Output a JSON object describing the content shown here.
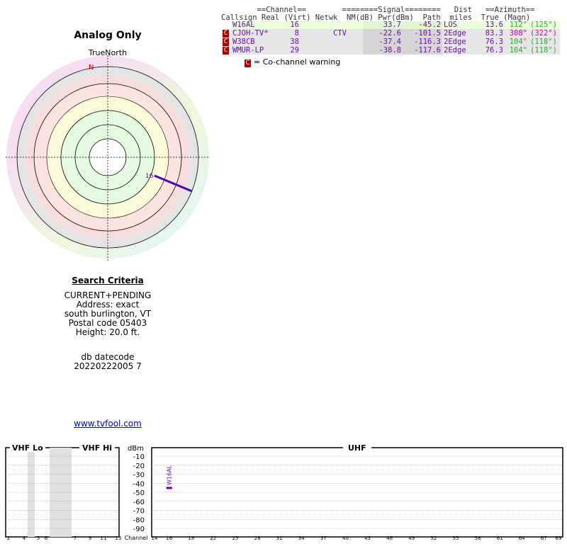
{
  "title": "Analog Only",
  "true_north_label": "TrueNorth",
  "compass_n": "N",
  "radar_station_label": "16",
  "criteria": {
    "heading": "Search Criteria",
    "lines": [
      "CURRENT+PENDING",
      "Address: exact",
      "south burlington, VT",
      "Postal code 05403",
      "Height: 20.0 ft."
    ],
    "db_label": "db datecode",
    "db_value": "20220222005 7"
  },
  "site_link": "www.tvfool.com",
  "table": {
    "header1": "        ==Channel==        ========Signal========   Dist   ==Azimuth==",
    "header2": "Callsign Real (Virt) Netwk  NM(dB) Pwr(dBm)  Path  miles  True (Magn)",
    "rows": [
      {
        "warn": "",
        "callsign": "W16AL",
        "real": "16",
        "virt": "",
        "netwk": "",
        "nm": "33.7",
        "pwr": "-45.2",
        "path": "LOS",
        "dist": "13.6",
        "true_az": "112°",
        "magn": "(125°)",
        "bg": "#eaffd9",
        "az_color": "#3a3"
      },
      {
        "warn": "C",
        "callsign": "CJOH-TV*",
        "real": "8",
        "virt": "",
        "netwk": "CTV",
        "nm": "-22.6",
        "pwr": "-101.5",
        "path": "2Edge",
        "dist": "83.3",
        "true_az": "308°",
        "magn": "(322°)",
        "bg": "#e6e6e6",
        "az_color": "#c0a"
      },
      {
        "warn": "C",
        "callsign": "W38CB",
        "real": "38",
        "virt": "",
        "netwk": "",
        "nm": "-37.4",
        "pwr": "-116.3",
        "path": "2Edge",
        "dist": "76.3",
        "true_az": "104°",
        "magn": "(118°)",
        "bg": "#e6e6e6",
        "az_color": "#3a3"
      },
      {
        "warn": "C",
        "callsign": "WMUR-LP",
        "real": "29",
        "virt": "",
        "netwk": "",
        "nm": "-38.8",
        "pwr": "-117.6",
        "path": "2Edge",
        "dist": "76.3",
        "true_az": "104°",
        "magn": "(118°)",
        "bg": "#e6e6e6",
        "az_color": "#3a3"
      }
    ],
    "co_channel_note": "= Co-channel warning",
    "co_channel_symbol": "C"
  },
  "spectrum": {
    "vhf_lo_label": "VHF Lo",
    "vhf_hi_label": "VHF Hi",
    "uhf_label": "UHF",
    "dbm_label": "dBm",
    "channel_label": "Channel",
    "dbm_ticks": [
      "-10",
      "-20",
      "-30",
      "-40",
      "-50",
      "-60",
      "-70",
      "-80",
      "-90"
    ],
    "vhf_lo_channels": [
      "2",
      "4",
      "5",
      "6"
    ],
    "vhf_hi_channels": [
      "7",
      "9",
      "11",
      "13"
    ],
    "uhf_channels": [
      "14",
      "16",
      "19",
      "22",
      "25",
      "28",
      "31",
      "34",
      "37",
      "40",
      "43",
      "46",
      "49",
      "52",
      "55",
      "58",
      "61",
      "64",
      "67",
      "69"
    ],
    "bar_station": "W16AL",
    "bar_channel": 16,
    "bar_dbm": -45.2
  },
  "colors": {
    "purple": "#6a0dad",
    "warn_red": "#a00",
    "link": "#0000cc"
  }
}
